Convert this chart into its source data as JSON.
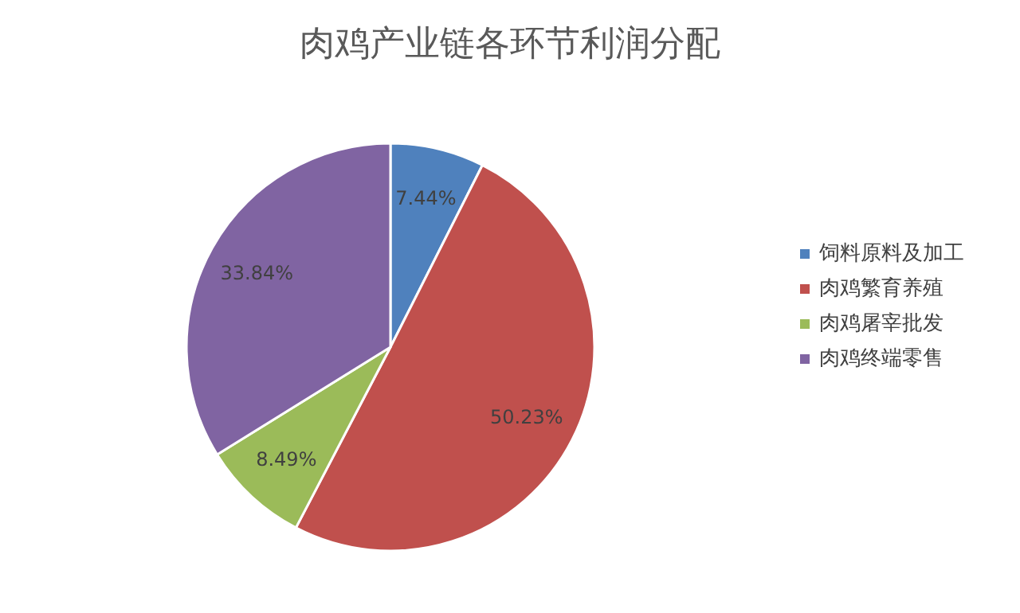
{
  "chart_data": {
    "type": "pie",
    "title": "肉鸡产业链各环节利润分配",
    "categories": [
      "饲料原料及加工",
      "肉鸡繁育养殖",
      "肉鸡屠宰批发",
      "肉鸡终端零售"
    ],
    "values": [
      7.44,
      50.23,
      8.49,
      33.84
    ],
    "colors": [
      "#4f81bd",
      "#c0504d",
      "#9bbb59",
      "#8064a2"
    ],
    "value_labels": [
      "7.44%",
      "50.23%",
      "8.49%",
      "33.84%"
    ],
    "legend": "right"
  }
}
